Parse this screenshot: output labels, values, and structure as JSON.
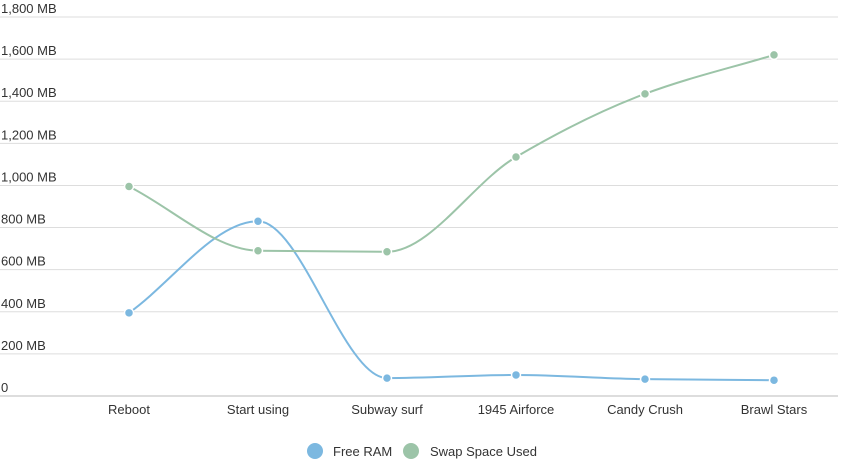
{
  "chart_data": {
    "type": "line",
    "categories": [
      "Reboot",
      "Start using",
      "Subway surf",
      "1945 Airforce",
      "Candy Crush",
      "Brawl Stars"
    ],
    "series": [
      {
        "name": "Free RAM",
        "color": "#7cb8e0",
        "values": [
          395,
          830,
          85,
          100,
          80,
          75
        ]
      },
      {
        "name": "Swap Space Used",
        "color": "#9cc4a8",
        "values": [
          995,
          690,
          685,
          1135,
          1435,
          1620
        ]
      }
    ],
    "y_ticks": [
      "0",
      "200 MB",
      "400 MB",
      "600 MB",
      "800 MB",
      "1,000 MB",
      "1,200 MB",
      "1,400 MB",
      "1,600 MB",
      "1,800 MB"
    ],
    "ylim": [
      0,
      1800
    ],
    "grid": true,
    "legend_position": "bottom-center",
    "smooth": true
  }
}
